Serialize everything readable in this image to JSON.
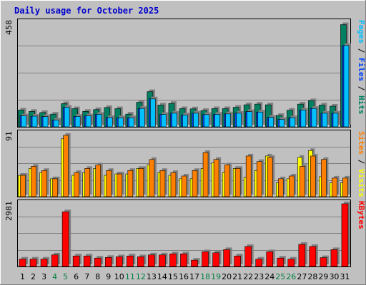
{
  "chart_data": {
    "type": "bar",
    "title": "Daily usage for October 2025",
    "categories": [
      "1",
      "2",
      "3",
      "4",
      "5",
      "6",
      "7",
      "8",
      "9",
      "10",
      "11",
      "12",
      "13",
      "14",
      "15",
      "16",
      "17",
      "18",
      "19",
      "20",
      "21",
      "22",
      "23",
      "24",
      "25",
      "26",
      "27",
      "28",
      "29",
      "30",
      "31"
    ],
    "weekend_days": [
      "4",
      "5",
      "11",
      "12",
      "18",
      "19",
      "25",
      "26"
    ],
    "panels": [
      {
        "id": "hits-files-pages",
        "ymax_label": "458",
        "ylim": [
          0,
          458
        ],
        "grid": true,
        "legend": [
          {
            "text": "Pages",
            "color": "#00c0ff"
          },
          {
            "text": " / ",
            "color": "#000000"
          },
          {
            "text": "Files",
            "color": "#0040ff"
          },
          {
            "text": " / ",
            "color": "#000000"
          },
          {
            "text": "Hits",
            "color": "#008060"
          }
        ],
        "series": [
          {
            "name": "Hits",
            "color": "#008060",
            "values": [
              74,
              68,
              63,
              56,
              102,
              80,
              68,
              76,
              85,
              80,
              56,
              108,
              155,
              96,
              103,
              80,
              79,
              72,
              80,
              80,
              86,
              97,
              100,
              97,
              50,
              73,
              100,
              115,
              96,
              91,
              450
            ]
          },
          {
            "name": "Files",
            "color": "#0040ff",
            "values": [
              48,
              47,
              45,
              30,
              86,
              46,
              48,
              55,
              41,
              40,
              40,
              81,
              123,
              55,
              60,
              52,
              60,
              54,
              55,
              57,
              60,
              67,
              65,
              42,
              33,
              40,
              74,
              81,
              60,
              60,
              358
            ]
          },
          {
            "name": "Pages",
            "color": "#00c0ff",
            "values": [
              48,
              47,
              45,
              30,
              86,
              46,
              48,
              55,
              41,
              40,
              40,
              81,
              123,
              55,
              60,
              52,
              60,
              54,
              55,
              57,
              60,
              67,
              65,
              42,
              33,
              40,
              74,
              81,
              60,
              60,
              358
            ]
          }
        ]
      },
      {
        "id": "visits-sites",
        "ymax_label": "91",
        "ylim": [
          0,
          91
        ],
        "grid": true,
        "legend": [
          {
            "text": "Sites",
            "color": "#ff8000"
          },
          {
            "text": " / ",
            "color": "#000000"
          },
          {
            "text": "Visits",
            "color": "#ffff00"
          }
        ],
        "series": [
          {
            "name": "Visits",
            "color": "#ffff00",
            "values": [
              31,
              41,
              35,
              26,
              84,
              31,
              35,
              41,
              31,
              33,
              33,
              41,
              46,
              35,
              31,
              26,
              26,
              41,
              49,
              35,
              41,
              28,
              38,
              59,
              20,
              26,
              57,
              67,
              29,
              20,
              20
            ]
          },
          {
            "name": "Sites",
            "color": "#ff8000",
            "values": [
              31,
              44,
              38,
              26,
              89,
              35,
              41,
              46,
              38,
              33,
              38,
              41,
              54,
              38,
              35,
              30,
              38,
              64,
              54,
              46,
              41,
              59,
              51,
              57,
              26,
              30,
              44,
              59,
              54,
              27,
              27
            ]
          }
        ]
      },
      {
        "id": "kbytes",
        "ymax_label": "2981",
        "ylim": [
          0,
          2981
        ],
        "grid": true,
        "legend": [
          {
            "text": "KBytes",
            "color": "#ff0000"
          }
        ],
        "series": [
          {
            "name": "KBytes",
            "color": "#ff0000",
            "values": [
              350,
              350,
              350,
              550,
              2600,
              500,
              500,
              400,
              430,
              460,
              500,
              460,
              550,
              550,
              600,
              600,
              300,
              700,
              650,
              800,
              500,
              950,
              350,
              700,
              400,
              350,
              1050,
              950,
              420,
              800,
              2981
            ]
          }
        ]
      }
    ]
  }
}
